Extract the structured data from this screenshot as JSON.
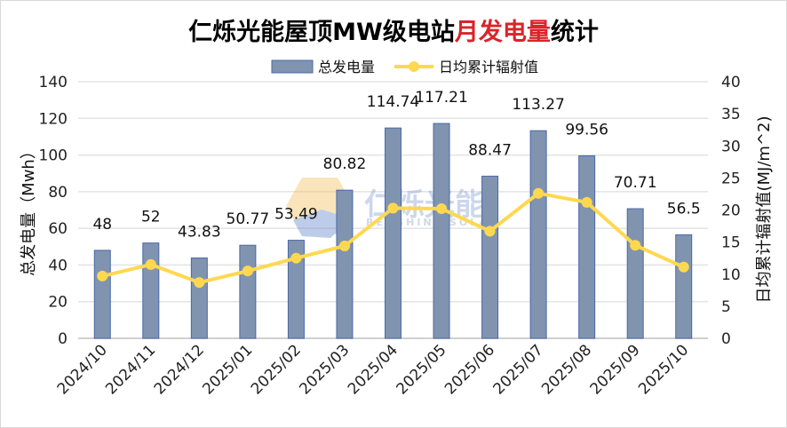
{
  "chart_data": {
    "type": "bar+line",
    "title_parts": [
      "仁烁光能屋顶MW级电站",
      "月发电量",
      "统计"
    ],
    "watermark": {
      "cn": "仁烁光能",
      "en": "RENSHINE SOLAR"
    },
    "categories": [
      "2024/10",
      "2024/11",
      "2024/12",
      "2025/01",
      "2025/02",
      "2025/03",
      "2025/04",
      "2025/05",
      "2025/06",
      "2025/07",
      "2025/08",
      "2025/09",
      "2025/10"
    ],
    "series": [
      {
        "name": "总发电量",
        "type": "bar",
        "axis": "left",
        "color": "#8094b0",
        "values": [
          48,
          52,
          43.83,
          50.77,
          53.49,
          80.82,
          114.74,
          117.21,
          88.47,
          113.27,
          99.56,
          70.71,
          56.5
        ],
        "labels": [
          "48",
          "52",
          "43.83",
          "50.77",
          "53.49",
          "80.82",
          "114.74",
          "117.21",
          "88.47",
          "113.27",
          "99.56",
          "70.71",
          "56.5"
        ]
      },
      {
        "name": "日均累计辐射值",
        "type": "line",
        "axis": "right",
        "color": "#ffd84f",
        "values": [
          9.7,
          11.5,
          8.7,
          10.5,
          12.5,
          14.4,
          20.3,
          20.2,
          16.7,
          22.6,
          21.2,
          14.5,
          11.1
        ]
      }
    ],
    "ylabel": "总发电量（Mwh）",
    "y2label": "日均累计辐射值(MJ/m^2)",
    "ylim": [
      0,
      140
    ],
    "yticks": [
      0,
      20,
      40,
      60,
      80,
      100,
      120,
      140
    ],
    "y2lim": [
      0,
      40
    ],
    "y2ticks": [
      0,
      5,
      10,
      15,
      20,
      25,
      30,
      35,
      40
    ],
    "grid": true,
    "legend": "top-center"
  }
}
